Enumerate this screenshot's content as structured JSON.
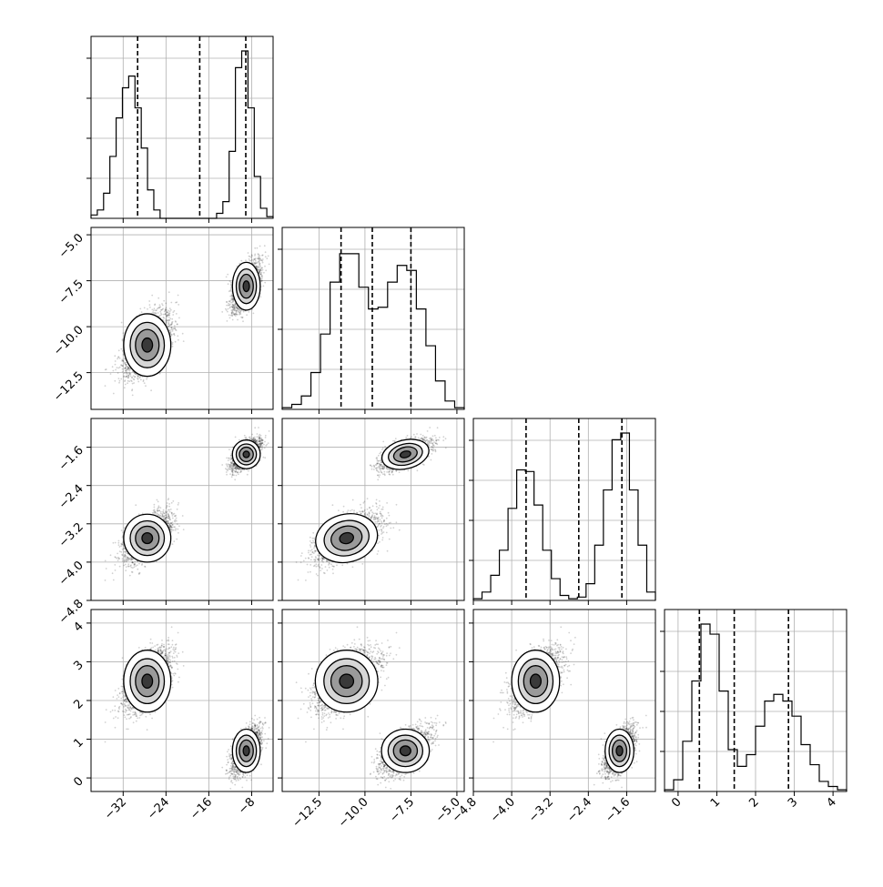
{
  "chart_data": {
    "type": "corner",
    "title": "",
    "params": [
      {
        "range": [
          -38,
          -4
        ],
        "ticks": [
          -32,
          -24,
          -16,
          -8
        ],
        "tick_labels": [
          "−32",
          "−24",
          "−16",
          "−8"
        ],
        "quantiles": [
          -29.3,
          -17.7,
          -9.1
        ]
      },
      {
        "range": [
          -14.5,
          -4.6
        ],
        "ticks": [
          -12.5,
          -10.0,
          -7.5,
          -5.0
        ],
        "tick_labels": [
          "−12.5",
          "−10.0",
          "−7.5",
          "−5.0"
        ],
        "quantiles": [
          -11.3,
          -9.6,
          -7.5
        ]
      },
      {
        "range": [
          -4.8,
          -1.0
        ],
        "ticks": [
          -4.8,
          -4.0,
          -3.2,
          -2.4,
          -1.6
        ],
        "tick_labels": [
          "−4.8",
          "−4.0",
          "−3.2",
          "−2.4",
          "−1.6"
        ],
        "quantiles": [
          -3.7,
          -2.6,
          -1.7
        ]
      },
      {
        "range": [
          -0.35,
          4.35
        ],
        "ticks": [
          0,
          1,
          2,
          3,
          4
        ],
        "tick_labels": [
          "0",
          "1",
          "2",
          "3",
          "4"
        ],
        "quantiles": [
          0.55,
          1.45,
          2.85
        ]
      }
    ],
    "histograms": [
      {
        "param": 0,
        "counts": [
          0.02,
          0.05,
          0.15,
          0.37,
          0.6,
          0.78,
          0.85,
          0.66,
          0.42,
          0.17,
          0.05,
          0.0,
          0.0,
          0.0,
          0.0,
          0.0,
          0.0,
          0.0,
          0.0,
          0.0,
          0.03,
          0.1,
          0.4,
          0.9,
          1.0,
          0.66,
          0.25,
          0.06,
          0.01
        ]
      },
      {
        "param": 1,
        "counts": [
          0.01,
          0.03,
          0.08,
          0.22,
          0.45,
          0.76,
          0.93,
          0.93,
          0.73,
          0.6,
          0.61,
          0.76,
          0.86,
          0.83,
          0.6,
          0.38,
          0.17,
          0.05,
          0.01
        ]
      },
      {
        "param": 2,
        "counts": [
          0.01,
          0.05,
          0.15,
          0.3,
          0.55,
          0.78,
          0.77,
          0.57,
          0.3,
          0.13,
          0.03,
          0.01,
          0.02,
          0.1,
          0.33,
          0.66,
          0.96,
          1.0,
          0.66,
          0.33,
          0.05
        ]
      },
      {
        "param": 3,
        "counts": [
          0.01,
          0.07,
          0.3,
          0.66,
          1.0,
          0.94,
          0.6,
          0.25,
          0.15,
          0.22,
          0.39,
          0.54,
          0.58,
          0.54,
          0.45,
          0.28,
          0.16,
          0.06,
          0.03,
          0.01
        ]
      }
    ],
    "modes": [
      {
        "name": "",
        "weight": 0.5,
        "mean": [
          -27.5,
          -11.0,
          -3.5,
          2.5
        ],
        "std": [
          2.2,
          0.85,
          0.25,
          0.4
        ]
      },
      {
        "name": "",
        "weight": 0.5,
        "mean": [
          -9.0,
          -7.8,
          -1.75,
          0.7
        ],
        "std": [
          1.3,
          0.65,
          0.15,
          0.28
        ]
      }
    ],
    "scatter_points_per_mode": 2200,
    "grid": true
  }
}
